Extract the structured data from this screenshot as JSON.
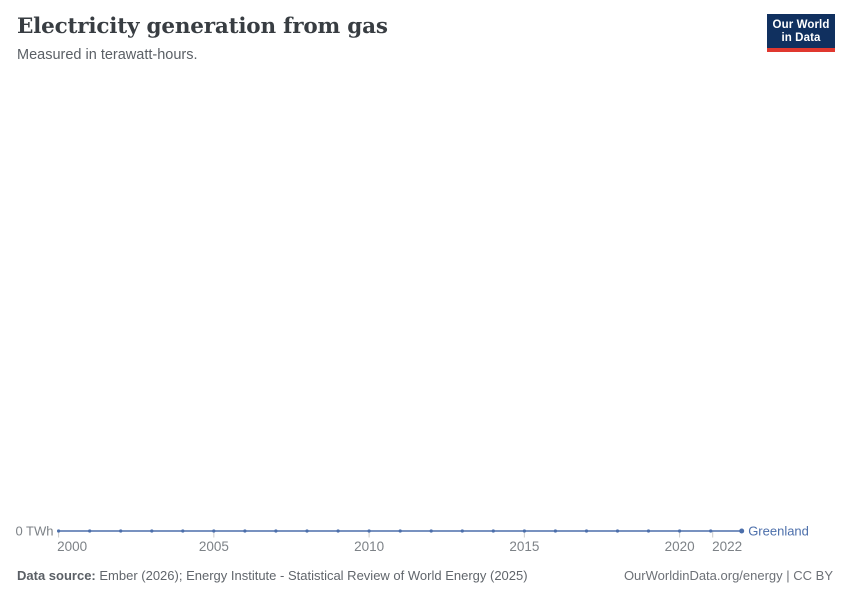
{
  "header": {
    "title": "Electricity generation from gas",
    "subtitle": "Measured in terawatt-hours."
  },
  "logo": {
    "line1": "Our World",
    "line2": "in Data",
    "bg_color": "#10305f",
    "accent_color": "#e0382f"
  },
  "chart_data": {
    "type": "line",
    "title": "Electricity generation from gas",
    "unit": "TWh",
    "y_axis_label": "0 TWh",
    "ylim": [
      0,
      0
    ],
    "grid": false,
    "x": [
      2000,
      2001,
      2002,
      2003,
      2004,
      2005,
      2006,
      2007,
      2008,
      2009,
      2010,
      2011,
      2012,
      2013,
      2014,
      2015,
      2016,
      2017,
      2018,
      2019,
      2020,
      2021,
      2022
    ],
    "x_ticks": [
      2000,
      2005,
      2010,
      2015,
      2020,
      2022
    ],
    "series": [
      {
        "name": "Greenland",
        "color": "#4c6fab",
        "values": [
          0,
          0,
          0,
          0,
          0,
          0,
          0,
          0,
          0,
          0,
          0,
          0,
          0,
          0,
          0,
          0,
          0,
          0,
          0,
          0,
          0,
          0,
          0
        ]
      }
    ],
    "axis_text_color": "#7d8287",
    "tick_color": "#cccccc"
  },
  "footer": {
    "source_prefix": "Data source:",
    "source_text": " Ember (2026); Energy Institute - Statistical Review of World Energy (2025)",
    "right_text": "OurWorldinData.org/energy | CC BY"
  }
}
